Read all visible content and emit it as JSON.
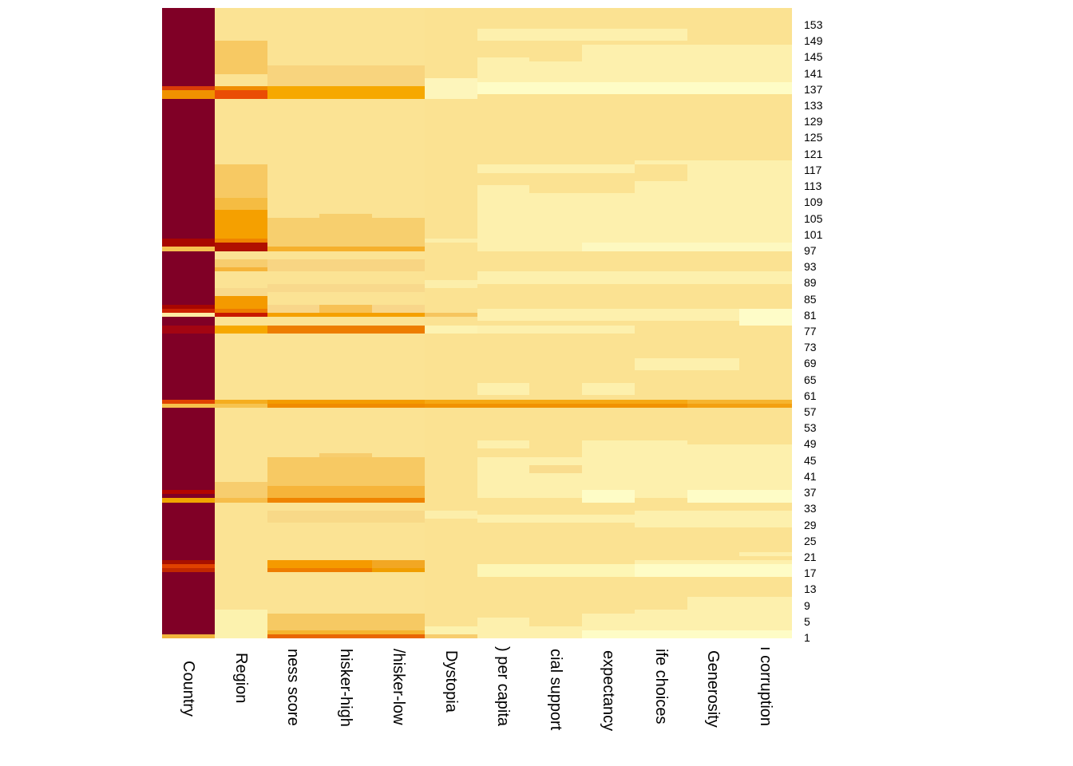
{
  "chart_data": {
    "type": "heatmap",
    "title": "",
    "legend": "none",
    "grid": "off",
    "n_rows": 153,
    "n_cols": 12,
    "column_labels": [
      "Country",
      "Region",
      "ness score",
      "hisker-high",
      "/hisker-low",
      "Dystopia",
      ") per capita",
      "cial support",
      "expectancy",
      "ife choices",
      "Generosity",
      "ı corruption"
    ],
    "row_tick_labels": [
      "153",
      "149",
      "145",
      "141",
      "137",
      "133",
      "129",
      "125",
      "121",
      "117",
      "113",
      "109",
      "105",
      "101",
      "97",
      "93",
      "89",
      "85",
      "81",
      "77",
      "73",
      "69",
      "65",
      "61",
      "57",
      "53",
      "49",
      "45",
      "41",
      "37",
      "33",
      "29",
      "25",
      "21",
      "17",
      "13",
      "9",
      "5",
      "1"
    ],
    "colormap_hint": "YlOrRd (light yellow = low, dark red = high)",
    "column_base_colors": [
      "#800026",
      "#fbe394",
      "#fbe394",
      "#fbe394",
      "#fbe394",
      "#fbe292",
      "#fbe292",
      "#fbe292",
      "#fbe292",
      "#fbe292",
      "#fbe292",
      "#fbe292"
    ],
    "segments_format": [
      "column(1-12)",
      "row_top(153=top,1=bottom)",
      "row_bottom",
      "color"
    ],
    "segments": [
      [
        1,
        134,
        134,
        "#d93c08"
      ],
      [
        1,
        133,
        132,
        "#f09200"
      ],
      [
        1,
        97,
        96,
        "#a80600"
      ],
      [
        1,
        95,
        95,
        "#f5c050"
      ],
      [
        1,
        81,
        81,
        "#a80600"
      ],
      [
        1,
        80,
        80,
        "#cc2200"
      ],
      [
        1,
        79,
        79,
        "#fdeca4"
      ],
      [
        1,
        76,
        75,
        "#a30512"
      ],
      [
        1,
        58,
        58,
        "#e04200"
      ],
      [
        1,
        57,
        57,
        "#f6c14b"
      ],
      [
        1,
        36,
        36,
        "#b30500"
      ],
      [
        1,
        34,
        34,
        "#f0a600"
      ],
      [
        1,
        19,
        19,
        "#a81000"
      ],
      [
        1,
        18,
        18,
        "#e04200"
      ],
      [
        1,
        17,
        17,
        "#c22800"
      ],
      [
        1,
        1,
        1,
        "#f0b43c"
      ],
      [
        2,
        145,
        138,
        "#f7c963"
      ],
      [
        2,
        134,
        134,
        "#f08c00"
      ],
      [
        2,
        133,
        132,
        "#ea4d05"
      ],
      [
        2,
        115,
        108,
        "#f7c963"
      ],
      [
        2,
        107,
        105,
        "#f5bc42"
      ],
      [
        2,
        104,
        98,
        "#f5a000"
      ],
      [
        2,
        97,
        97,
        "#ef8300"
      ],
      [
        2,
        96,
        95,
        "#b01000"
      ],
      [
        2,
        92,
        91,
        "#f7cd6e"
      ],
      [
        2,
        90,
        90,
        "#f5b43a"
      ],
      [
        2,
        85,
        84,
        "#f8d98c"
      ],
      [
        2,
        83,
        81,
        "#f49a00"
      ],
      [
        2,
        80,
        80,
        "#ee7b00"
      ],
      [
        2,
        79,
        79,
        "#c81800"
      ],
      [
        2,
        76,
        75,
        "#f6a800"
      ],
      [
        2,
        58,
        58,
        "#f5ad1e"
      ],
      [
        2,
        57,
        57,
        "#f6c34f"
      ],
      [
        2,
        38,
        35,
        "#f7cd6e"
      ],
      [
        2,
        34,
        34,
        "#f6bd4a"
      ],
      [
        2,
        7,
        1,
        "#fcf2ae"
      ],
      [
        3,
        139,
        135,
        "#f8d47e"
      ],
      [
        3,
        134,
        132,
        "#f6a800"
      ],
      [
        3,
        102,
        96,
        "#f7cf6e"
      ],
      [
        3,
        95,
        95,
        "#f5b02c"
      ],
      [
        3,
        92,
        90,
        "#f8d583"
      ],
      [
        3,
        86,
        85,
        "#f8d98c"
      ],
      [
        3,
        81,
        80,
        "#f8d68a"
      ],
      [
        3,
        79,
        79,
        "#f5a000"
      ],
      [
        3,
        76,
        75,
        "#ed7d00"
      ],
      [
        3,
        58,
        58,
        "#f49c00"
      ],
      [
        3,
        57,
        57,
        "#f08c00"
      ],
      [
        3,
        44,
        38,
        "#f7c963"
      ],
      [
        3,
        37,
        35,
        "#f6b43a"
      ],
      [
        3,
        34,
        34,
        "#ef8400"
      ],
      [
        3,
        31,
        29,
        "#f8d988"
      ],
      [
        3,
        19,
        18,
        "#f59a00"
      ],
      [
        3,
        17,
        17,
        "#ee7c00"
      ],
      [
        3,
        6,
        3,
        "#f6c963"
      ],
      [
        3,
        2,
        2,
        "#f5b42e"
      ],
      [
        3,
        1,
        1,
        "#e96604"
      ],
      [
        4,
        139,
        135,
        "#f8d47e"
      ],
      [
        4,
        134,
        132,
        "#f6a800"
      ],
      [
        4,
        103,
        96,
        "#f7cf6e"
      ],
      [
        4,
        95,
        95,
        "#f5b02c"
      ],
      [
        4,
        92,
        90,
        "#f8d583"
      ],
      [
        4,
        86,
        85,
        "#f8d98c"
      ],
      [
        4,
        81,
        80,
        "#f7c155"
      ],
      [
        4,
        79,
        79,
        "#f5a000"
      ],
      [
        4,
        76,
        75,
        "#ed7d00"
      ],
      [
        4,
        58,
        58,
        "#f49c00"
      ],
      [
        4,
        57,
        57,
        "#f08c00"
      ],
      [
        4,
        45,
        45,
        "#f7cd6e"
      ],
      [
        4,
        44,
        38,
        "#f7c963"
      ],
      [
        4,
        37,
        35,
        "#f6b43a"
      ],
      [
        4,
        34,
        34,
        "#ef8400"
      ],
      [
        4,
        31,
        29,
        "#f8d988"
      ],
      [
        4,
        19,
        18,
        "#f59a00"
      ],
      [
        4,
        17,
        17,
        "#ee7c00"
      ],
      [
        4,
        6,
        3,
        "#f6c963"
      ],
      [
        4,
        2,
        2,
        "#f5b42e"
      ],
      [
        4,
        1,
        1,
        "#e96604"
      ],
      [
        5,
        139,
        135,
        "#f8d47e"
      ],
      [
        5,
        134,
        132,
        "#f6a800"
      ],
      [
        5,
        102,
        96,
        "#f7cf6e"
      ],
      [
        5,
        95,
        95,
        "#f5b02c"
      ],
      [
        5,
        92,
        90,
        "#f8d583"
      ],
      [
        5,
        86,
        85,
        "#f8d98c"
      ],
      [
        5,
        81,
        80,
        "#f8d68a"
      ],
      [
        5,
        79,
        79,
        "#f5a000"
      ],
      [
        5,
        76,
        75,
        "#ed7d00"
      ],
      [
        5,
        58,
        58,
        "#f49c00"
      ],
      [
        5,
        57,
        57,
        "#f08c00"
      ],
      [
        5,
        44,
        38,
        "#f7c963"
      ],
      [
        5,
        37,
        35,
        "#f6b43a"
      ],
      [
        5,
        34,
        34,
        "#ef8400"
      ],
      [
        5,
        31,
        29,
        "#f8d988"
      ],
      [
        5,
        19,
        18,
        "#f2a723"
      ],
      [
        5,
        17,
        17,
        "#f09e00"
      ],
      [
        5,
        6,
        3,
        "#f6c963"
      ],
      [
        5,
        2,
        2,
        "#f5b42e"
      ],
      [
        5,
        1,
        1,
        "#e96604"
      ],
      [
        6,
        136,
        132,
        "#fdf5bb"
      ],
      [
        6,
        97,
        97,
        "#fceeaa"
      ],
      [
        6,
        87,
        86,
        "#fceeaa"
      ],
      [
        6,
        79,
        79,
        "#f6c55e"
      ],
      [
        6,
        76,
        75,
        "#fdf3b2"
      ],
      [
        6,
        58,
        58,
        "#f6a812"
      ],
      [
        6,
        57,
        57,
        "#f19200"
      ],
      [
        6,
        31,
        30,
        "#fceeaa"
      ],
      [
        6,
        3,
        2,
        "#fcf2ae"
      ],
      [
        6,
        1,
        1,
        "#f7cd6e"
      ],
      [
        7,
        148,
        146,
        "#fdf0ad"
      ],
      [
        7,
        141,
        136,
        "#fdf0ad"
      ],
      [
        7,
        135,
        133,
        "#fefcc6"
      ],
      [
        7,
        115,
        114,
        "#fdf0ad"
      ],
      [
        7,
        110,
        95,
        "#fdf0ad"
      ],
      [
        7,
        89,
        87,
        "#fdf0ad"
      ],
      [
        7,
        80,
        78,
        "#fdf0ad"
      ],
      [
        7,
        76,
        75,
        "#fdf0ad"
      ],
      [
        7,
        62,
        60,
        "#fdf0ad"
      ],
      [
        7,
        58,
        58,
        "#f6a812"
      ],
      [
        7,
        57,
        57,
        "#f19200"
      ],
      [
        7,
        48,
        47,
        "#fdf0ad"
      ],
      [
        7,
        44,
        35,
        "#fdf0ad"
      ],
      [
        7,
        30,
        29,
        "#fdf0ad"
      ],
      [
        7,
        18,
        16,
        "#fdf6b5"
      ],
      [
        7,
        5,
        1,
        "#fdf0ad"
      ],
      [
        8,
        148,
        146,
        "#fdf0ad"
      ],
      [
        8,
        140,
        136,
        "#fdf0ad"
      ],
      [
        8,
        135,
        133,
        "#fefcc6"
      ],
      [
        8,
        115,
        114,
        "#fdf0ad"
      ],
      [
        8,
        108,
        95,
        "#fdf0ad"
      ],
      [
        8,
        89,
        87,
        "#fdf0ad"
      ],
      [
        8,
        80,
        78,
        "#fdf0ad"
      ],
      [
        8,
        76,
        75,
        "#fdf0ad"
      ],
      [
        8,
        58,
        58,
        "#f6a812"
      ],
      [
        8,
        57,
        57,
        "#f19200"
      ],
      [
        8,
        44,
        35,
        "#fdf0ad"
      ],
      [
        8,
        42,
        41,
        "#f9dc8e"
      ],
      [
        8,
        30,
        29,
        "#fdf0ad"
      ],
      [
        8,
        18,
        16,
        "#fdf6b5"
      ],
      [
        8,
        3,
        1,
        "#fdf0ad"
      ],
      [
        9,
        148,
        146,
        "#fdf0ad"
      ],
      [
        9,
        144,
        136,
        "#fdf0ad"
      ],
      [
        9,
        135,
        133,
        "#fefcc6"
      ],
      [
        9,
        115,
        114,
        "#fdf0ad"
      ],
      [
        9,
        108,
        97,
        "#fdf0ad"
      ],
      [
        9,
        96,
        95,
        "#fdf8c0"
      ],
      [
        9,
        89,
        87,
        "#fdf0ad"
      ],
      [
        9,
        80,
        78,
        "#fdf0ad"
      ],
      [
        9,
        76,
        75,
        "#fdf0ad"
      ],
      [
        9,
        62,
        60,
        "#fdf0ad"
      ],
      [
        9,
        58,
        58,
        "#f6a812"
      ],
      [
        9,
        57,
        57,
        "#f19200"
      ],
      [
        9,
        48,
        37,
        "#fdf0ad"
      ],
      [
        9,
        36,
        34,
        "#fefcc6"
      ],
      [
        9,
        30,
        29,
        "#fdf0ad"
      ],
      [
        9,
        18,
        16,
        "#fdf6b5"
      ],
      [
        9,
        6,
        3,
        "#fdf0ad"
      ],
      [
        9,
        2,
        1,
        "#fefcc6"
      ],
      [
        10,
        148,
        146,
        "#fdf0ad"
      ],
      [
        10,
        144,
        136,
        "#fdf0ad"
      ],
      [
        10,
        135,
        133,
        "#fefcc6"
      ],
      [
        10,
        116,
        116,
        "#fdf0ad"
      ],
      [
        10,
        111,
        97,
        "#fdf0ad"
      ],
      [
        10,
        96,
        95,
        "#fdf8c0"
      ],
      [
        10,
        89,
        87,
        "#fdf0ad"
      ],
      [
        10,
        80,
        78,
        "#fdf0ad"
      ],
      [
        10,
        68,
        66,
        "#fdf0ad"
      ],
      [
        10,
        58,
        58,
        "#f6a812"
      ],
      [
        10,
        57,
        57,
        "#f19200"
      ],
      [
        10,
        48,
        35,
        "#fdf0ad"
      ],
      [
        10,
        31,
        28,
        "#fdf0ad"
      ],
      [
        10,
        19,
        19,
        "#fdf0ad"
      ],
      [
        10,
        18,
        16,
        "#fefcc6"
      ],
      [
        10,
        7,
        3,
        "#fdf0ad"
      ],
      [
        10,
        2,
        1,
        "#fefcc6"
      ],
      [
        11,
        144,
        136,
        "#fdf0ad"
      ],
      [
        11,
        135,
        133,
        "#fefcc6"
      ],
      [
        11,
        116,
        116,
        "#fdf0ad"
      ],
      [
        11,
        115,
        97,
        "#fdf0ad"
      ],
      [
        11,
        96,
        95,
        "#fdf8c0"
      ],
      [
        11,
        89,
        87,
        "#fdf0ad"
      ],
      [
        11,
        80,
        78,
        "#fdf0ad"
      ],
      [
        11,
        68,
        66,
        "#fdf0ad"
      ],
      [
        11,
        58,
        58,
        "#f6b42e"
      ],
      [
        11,
        57,
        57,
        "#f3a010"
      ],
      [
        11,
        47,
        37,
        "#fdf0ad"
      ],
      [
        11,
        36,
        34,
        "#fefcc6"
      ],
      [
        11,
        31,
        28,
        "#fdf0ad"
      ],
      [
        11,
        19,
        19,
        "#fdf0ad"
      ],
      [
        11,
        18,
        16,
        "#fefcc6"
      ],
      [
        11,
        10,
        3,
        "#fdf0ad"
      ],
      [
        11,
        2,
        1,
        "#fefcc6"
      ],
      [
        12,
        144,
        136,
        "#fdf0ad"
      ],
      [
        12,
        135,
        133,
        "#fefcc6"
      ],
      [
        12,
        116,
        116,
        "#fdf0ad"
      ],
      [
        12,
        115,
        97,
        "#fdf0ad"
      ],
      [
        12,
        96,
        95,
        "#fdf8c0"
      ],
      [
        12,
        89,
        87,
        "#fdf0ad"
      ],
      [
        12,
        80,
        77,
        "#fefcc8"
      ],
      [
        12,
        58,
        58,
        "#f6b42e"
      ],
      [
        12,
        57,
        57,
        "#f3a010"
      ],
      [
        12,
        47,
        37,
        "#fdf0ad"
      ],
      [
        12,
        36,
        34,
        "#fefcc6"
      ],
      [
        12,
        31,
        28,
        "#fdf0ad"
      ],
      [
        12,
        21,
        21,
        "#fdf0ad"
      ],
      [
        12,
        19,
        19,
        "#fdf0ad"
      ],
      [
        12,
        18,
        16,
        "#fefcc6"
      ],
      [
        12,
        10,
        3,
        "#fdf0ad"
      ],
      [
        12,
        2,
        1,
        "#fefcc6"
      ]
    ]
  }
}
